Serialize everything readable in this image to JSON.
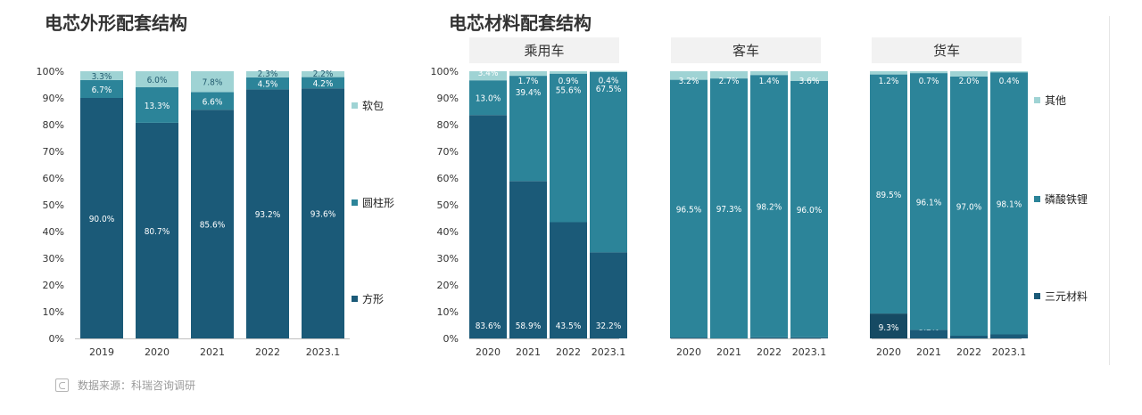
{
  "colors": {
    "dark": "#1b5a78",
    "mid": "#2c8499",
    "light": "#9fd3d4",
    "darkest": "#164a63"
  },
  "charts": [
    {
      "title": "电芯外形配套结构",
      "chart_data": {
        "type": "bar",
        "stacked": true,
        "categories": [
          "2019",
          "2020",
          "2021",
          "2022",
          "2023.1"
        ],
        "series": [
          {
            "name": "方形",
            "values": [
              90.0,
              80.7,
              85.6,
              93.2,
              93.6
            ],
            "labels": [
              "90.0%",
              "80.7%",
              "85.6%",
              "93.2%",
              "93.6%"
            ]
          },
          {
            "name": "圆柱形",
            "values": [
              6.7,
              13.3,
              6.6,
              4.5,
              4.2
            ],
            "labels": [
              "6.7%",
              "13.3%",
              "6.6%",
              "4.5%",
              "4.2%"
            ]
          },
          {
            "name": "软包",
            "values": [
              3.3,
              6.0,
              7.8,
              2.3,
              2.2
            ],
            "labels": [
              "3.3%",
              "6.0%",
              "7.8%",
              "2.3%",
              "2.2%"
            ]
          }
        ],
        "ylim": [
          0,
          100
        ],
        "yticks": [
          "0%",
          "10%",
          "20%",
          "30%",
          "40%",
          "50%",
          "60%",
          "70%",
          "80%",
          "90%",
          "100%"
        ],
        "legend": [
          "软包",
          "圆柱形",
          "方形"
        ],
        "legend_position": "right"
      }
    },
    {
      "title": "电芯材料配套结构",
      "chart_data": {
        "type": "bar",
        "stacked": true,
        "ylim": [
          0,
          100
        ],
        "yticks": [
          "0%",
          "10%",
          "20%",
          "30%",
          "40%",
          "50%",
          "60%",
          "70%",
          "80%",
          "90%",
          "100%"
        ],
        "legend": [
          "其他",
          "磷酸铁锂",
          "三元材料"
        ],
        "legend_position": "right",
        "groups": [
          {
            "name": "乘用车",
            "categories": [
              "2020",
              "2021",
              "2022",
              "2023.1"
            ],
            "series": [
              {
                "name": "三元材料",
                "values": [
                  83.6,
                  58.9,
                  43.5,
                  32.2
                ],
                "labels": [
                  "83.6%",
                  "58.9%",
                  "43.5%",
                  "32.2%"
                ]
              },
              {
                "name": "磷酸铁锂",
                "values": [
                  13.0,
                  39.4,
                  55.6,
                  67.5
                ],
                "labels": [
                  "13.0%",
                  "39.4%",
                  "55.6%",
                  "67.5%"
                ]
              },
              {
                "name": "其他",
                "values": [
                  3.4,
                  1.7,
                  0.9,
                  0.4
                ],
                "labels": [
                  "3.4%",
                  "1.7%",
                  "0.9%",
                  "0.4%"
                ]
              }
            ]
          },
          {
            "name": "客车",
            "categories": [
              "2020",
              "2021",
              "2022",
              "2023.1"
            ],
            "series": [
              {
                "name": "三元材料",
                "values": [
                  0.3,
                  0.0,
                  0.4,
                  0.4
                ],
                "labels": [
                  "0.3%",
                  "",
                  "0.4%",
                  "0.4%"
                ]
              },
              {
                "name": "磷酸铁锂",
                "values": [
                  96.5,
                  97.3,
                  98.2,
                  96.0
                ],
                "labels": [
                  "96.5%",
                  "97.3%",
                  "98.2%",
                  "96.0%"
                ]
              },
              {
                "name": "其他",
                "values": [
                  3.2,
                  2.7,
                  1.4,
                  3.6
                ],
                "labels": [
                  "3.2%",
                  "2.7%",
                  "1.4%",
                  "3.6%"
                ]
              }
            ]
          },
          {
            "name": "货车",
            "categories": [
              "2020",
              "2021",
              "2022",
              "2023.1"
            ],
            "series": [
              {
                "name": "三元材料",
                "values": [
                  9.3,
                  3.2,
                  1.0,
                  1.5
                ],
                "labels": [
                  "9.3%",
                  "3.2%",
                  "1.0%",
                  "1.5%"
                ]
              },
              {
                "name": "磷酸铁锂",
                "values": [
                  89.5,
                  96.1,
                  97.0,
                  98.1
                ],
                "labels": [
                  "89.5%",
                  "96.1%",
                  "97.0%",
                  "98.1%"
                ]
              },
              {
                "name": "其他",
                "values": [
                  1.2,
                  0.7,
                  2.0,
                  0.4
                ],
                "labels": [
                  "1.2%",
                  "0.7%",
                  "2.0%",
                  "0.4%"
                ]
              }
            ]
          }
        ]
      }
    }
  ],
  "source": "数据来源：科瑞咨询调研"
}
